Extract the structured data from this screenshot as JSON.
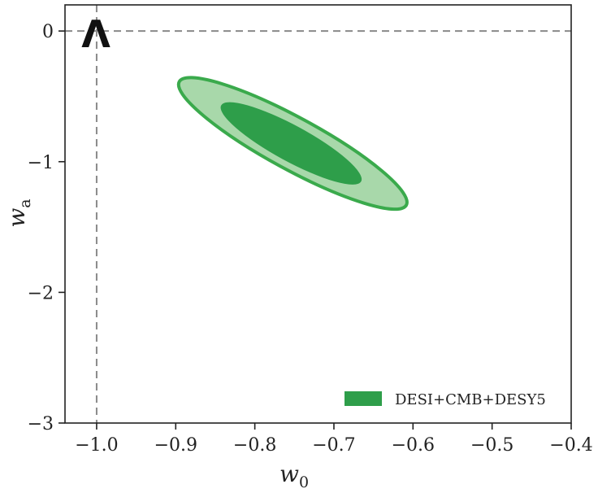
{
  "chart_data": {
    "type": "contour",
    "xlabel": "w",
    "xlabel_sub": "0",
    "ylabel": "w",
    "ylabel_sub": "a",
    "xlim": [
      -1.04,
      -0.4
    ],
    "ylim": [
      -3.0,
      0.2
    ],
    "x_ticks": [
      -1.0,
      -0.9,
      -0.8,
      -0.7,
      -0.6,
      -0.5,
      -0.4
    ],
    "x_tick_labels": [
      "−1.0",
      "−0.9",
      "−0.8",
      "−0.7",
      "−0.6",
      "−0.5",
      "−0.4"
    ],
    "y_ticks": [
      0,
      -1,
      -2,
      -3
    ],
    "y_tick_labels": [
      "0",
      "−1",
      "−2",
      "−3"
    ],
    "reference_lines": {
      "x": -1.0,
      "y": 0.0,
      "style": "dashed",
      "color": "#888888"
    },
    "annotation": "Λ",
    "series": [
      {
        "name": "DESI+CMB+DESY5",
        "center": [
          -0.752,
          -0.86
        ],
        "contours": [
          {
            "level": "68%",
            "color": "#2e9e4a",
            "half_width_along": [
              0.135,
              0.32
            ],
            "angle_deg_data": -1
          },
          {
            "level": "95%",
            "color": "#a6d8a8",
            "edge_color": "#2e9e4a"
          }
        ]
      }
    ],
    "legend": {
      "position": "bottom-right",
      "entries": [
        "DESI+CMB+DESY5"
      ]
    },
    "grid": false
  },
  "colors": {
    "inner": "#2e9e4a",
    "outer": "#a8d8aa",
    "outer_edge": "#3aaa4c",
    "reference": "#8a8a8a",
    "axis": "#222222"
  }
}
